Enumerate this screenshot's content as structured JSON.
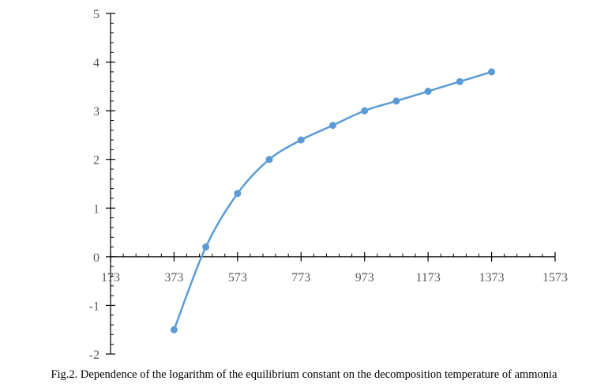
{
  "caption": "Fig.2. Dependence of the logarithm of the equilibrium constant on the decomposition temperature of ammonia",
  "chart_data": {
    "type": "scatter",
    "title": "",
    "xlabel": "",
    "ylabel": "",
    "xlim": [
      173,
      1573
    ],
    "ylim": [
      -2,
      5
    ],
    "x_ticks": [
      173,
      373,
      573,
      773,
      973,
      1173,
      1373,
      1573
    ],
    "y_ticks": [
      -2,
      -1,
      0,
      1,
      2,
      3,
      4,
      5
    ],
    "x_tick_labels": [
      "173",
      "373",
      "573",
      "773",
      "973",
      "1173",
      "1373",
      "1573"
    ],
    "y_tick_labels": [
      "-2",
      "-1",
      "0",
      "1",
      "2",
      "3",
      "4",
      "5"
    ],
    "grid": false,
    "legend": "none",
    "smooth_line": true,
    "series": [
      {
        "x": [
          373,
          473,
          573,
          673,
          773,
          873,
          973,
          1073,
          1173,
          1273,
          1373
        ],
        "y": [
          -1.5,
          0.2,
          1.3,
          2.0,
          2.4,
          2.7,
          3.0,
          3.2,
          3.4,
          3.6,
          3.8
        ],
        "color": "#5b9bd5"
      }
    ],
    "axis_color": "#000000"
  }
}
